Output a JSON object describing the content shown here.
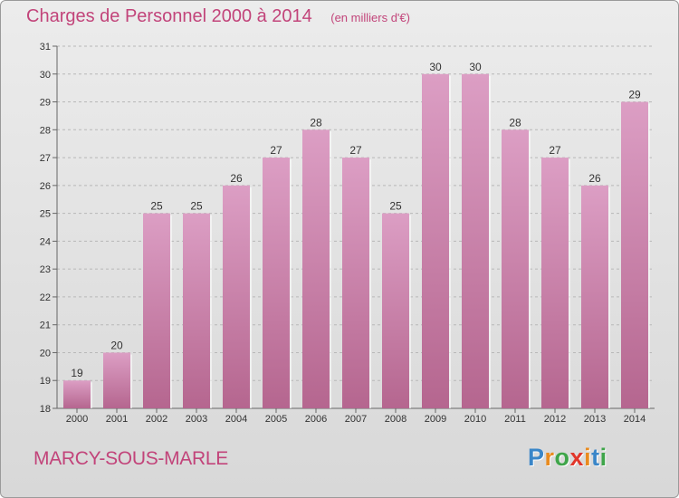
{
  "chart_data": {
    "type": "bar",
    "title": "Charges de Personnel 2000 à 2014",
    "subtitle": "(en milliers d'€)",
    "categories": [
      "2000",
      "2001",
      "2002",
      "2003",
      "2004",
      "2005",
      "2006",
      "2007",
      "2008",
      "2009",
      "2010",
      "2011",
      "2012",
      "2013",
      "2014"
    ],
    "values": [
      19,
      20,
      25,
      25,
      26,
      27,
      28,
      27,
      25,
      30,
      30,
      28,
      27,
      26,
      29
    ],
    "data_labels": [
      "19",
      "20",
      "25",
      "25",
      "26",
      "27",
      "28",
      "27",
      "25",
      "30",
      "30",
      "28",
      "27",
      "26",
      "29"
    ],
    "yticks": [
      "18",
      "19",
      "20",
      "21",
      "22",
      "23",
      "24",
      "25",
      "26",
      "27",
      "28",
      "29",
      "30",
      "31"
    ],
    "ylim": [
      18,
      31
    ],
    "xlabel": "",
    "ylabel": "",
    "grid": "horizontal dashed",
    "bar_color": "#dc9ec4",
    "bar_color_dark": "#b5668f"
  },
  "footer": {
    "commune": "MARCY-SOUS-MARLE"
  },
  "brand": {
    "letters": [
      "P",
      "r",
      "o",
      "x",
      "i",
      "t",
      "i"
    ],
    "colors": [
      "#3a86c8",
      "#e98b1f",
      "#3fa54a",
      "#e1362a",
      "#e98b1f",
      "#3a86c8",
      "#3fa54a"
    ]
  }
}
